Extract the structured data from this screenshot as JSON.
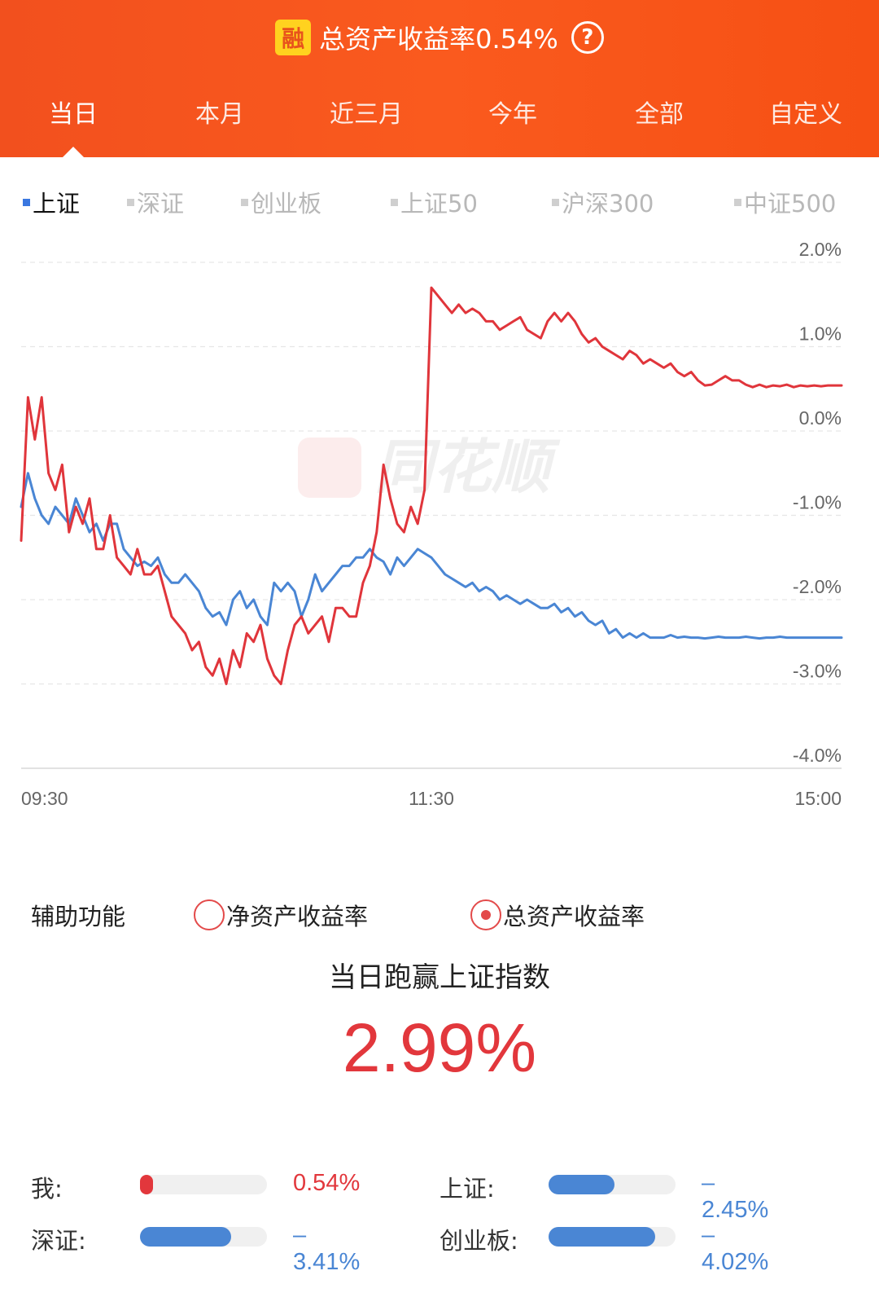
{
  "header": {
    "badge": "融",
    "title": "总资产收益率0.54%",
    "help_icon": "question-circle-icon",
    "tabs": [
      {
        "label": "当日",
        "active": true
      },
      {
        "label": "本月",
        "active": false
      },
      {
        "label": "近三月",
        "active": false
      },
      {
        "label": "今年",
        "active": false
      },
      {
        "label": "全部",
        "active": false
      },
      {
        "label": "自定义",
        "active": false
      }
    ]
  },
  "index_tabs": [
    {
      "label": "上证",
      "active": true
    },
    {
      "label": "深证",
      "active": false
    },
    {
      "label": "创业板",
      "active": false
    },
    {
      "label": "上证50",
      "active": false
    },
    {
      "label": "沪深300",
      "active": false
    },
    {
      "label": "中证500",
      "active": false
    }
  ],
  "watermark": "同花顺",
  "chart_data": {
    "type": "line",
    "x_ticks": [
      "09:30",
      "11:30",
      "15:00"
    ],
    "y_tick_labels": [
      "2.0%",
      "1.0%",
      "0.0%",
      "-1.0%",
      "-2.0%",
      "-3.0%",
      "-4.0%"
    ],
    "ylim": [
      -4.0,
      2.0
    ],
    "grid": true,
    "colors": {
      "my_return": "#e0353b",
      "index": "#4a86d4"
    },
    "series": [
      {
        "key": "my_return",
        "x": [
          0,
          2,
          4,
          6,
          8,
          10,
          12,
          14,
          16,
          18,
          20,
          22,
          24,
          26,
          28,
          30,
          32,
          34,
          36,
          38,
          40,
          42,
          44,
          46,
          48,
          50,
          52,
          54,
          56,
          58,
          60,
          62,
          64,
          66,
          68,
          70,
          72,
          74,
          76,
          78,
          80,
          82,
          84,
          86,
          88,
          90,
          92,
          94,
          96,
          98,
          100,
          102,
          104,
          106,
          108,
          110,
          112,
          114,
          116,
          118,
          120,
          122,
          124,
          126,
          128,
          130,
          132,
          134,
          136,
          138,
          140,
          142,
          144,
          146,
          148,
          150,
          152,
          154,
          156,
          158,
          160,
          162,
          164,
          166,
          168,
          170,
          172,
          174,
          176,
          178,
          180,
          182,
          184,
          186,
          188,
          190,
          192,
          194,
          196,
          198,
          200,
          202,
          204,
          206,
          208,
          210,
          212,
          214,
          216,
          218,
          220,
          222,
          224,
          226,
          228,
          230,
          232,
          234,
          236,
          238,
          240
        ],
        "y": [
          -1.3,
          0.4,
          -0.1,
          0.4,
          -0.5,
          -0.7,
          -0.4,
          -1.2,
          -0.9,
          -1.1,
          -0.8,
          -1.4,
          -1.4,
          -1.0,
          -1.5,
          -1.6,
          -1.7,
          -1.4,
          -1.7,
          -1.7,
          -1.6,
          -1.9,
          -2.2,
          -2.3,
          -2.4,
          -2.6,
          -2.5,
          -2.8,
          -2.9,
          -2.7,
          -3.0,
          -2.6,
          -2.8,
          -2.4,
          -2.5,
          -2.3,
          -2.7,
          -2.9,
          -3.0,
          -2.6,
          -2.3,
          -2.2,
          -2.4,
          -2.3,
          -2.2,
          -2.5,
          -2.1,
          -2.1,
          -2.2,
          -2.2,
          -1.8,
          -1.6,
          -1.2,
          -0.4,
          -0.8,
          -1.1,
          -1.2,
          -0.9,
          -1.1,
          -0.7,
          1.7,
          1.6,
          1.5,
          1.4,
          1.5,
          1.4,
          1.45,
          1.4,
          1.3,
          1.3,
          1.2,
          1.25,
          1.3,
          1.35,
          1.2,
          1.15,
          1.1,
          1.3,
          1.4,
          1.3,
          1.4,
          1.3,
          1.15,
          1.05,
          1.1,
          1.0,
          0.95,
          0.9,
          0.85,
          0.95,
          0.9,
          0.8,
          0.85,
          0.8,
          0.75,
          0.8,
          0.7,
          0.65,
          0.7,
          0.6,
          0.54,
          0.55,
          0.6,
          0.65,
          0.6,
          0.6,
          0.55,
          0.52,
          0.55,
          0.52,
          0.54,
          0.53,
          0.55,
          0.52,
          0.54,
          0.53,
          0.54,
          0.53,
          0.54,
          0.54,
          0.54
        ]
      },
      {
        "key": "index",
        "x": [
          0,
          2,
          4,
          6,
          8,
          10,
          12,
          14,
          16,
          18,
          20,
          22,
          24,
          26,
          28,
          30,
          32,
          34,
          36,
          38,
          40,
          42,
          44,
          46,
          48,
          50,
          52,
          54,
          56,
          58,
          60,
          62,
          64,
          66,
          68,
          70,
          72,
          74,
          76,
          78,
          80,
          82,
          84,
          86,
          88,
          90,
          92,
          94,
          96,
          98,
          100,
          102,
          104,
          106,
          108,
          110,
          112,
          114,
          116,
          118,
          120,
          122,
          124,
          126,
          128,
          130,
          132,
          134,
          136,
          138,
          140,
          142,
          144,
          146,
          148,
          150,
          152,
          154,
          156,
          158,
          160,
          162,
          164,
          166,
          168,
          170,
          172,
          174,
          176,
          178,
          180,
          182,
          184,
          186,
          188,
          190,
          192,
          194,
          196,
          198,
          200,
          202,
          204,
          206,
          208,
          210,
          212,
          214,
          216,
          218,
          220,
          222,
          224,
          226,
          228,
          230,
          232,
          234,
          236,
          238,
          240
        ],
        "y": [
          -0.9,
          -0.5,
          -0.8,
          -1.0,
          -1.1,
          -0.9,
          -1.0,
          -1.1,
          -0.8,
          -1.0,
          -1.2,
          -1.1,
          -1.3,
          -1.1,
          -1.1,
          -1.4,
          -1.5,
          -1.6,
          -1.55,
          -1.6,
          -1.5,
          -1.7,
          -1.8,
          -1.8,
          -1.7,
          -1.8,
          -1.9,
          -2.1,
          -2.2,
          -2.15,
          -2.3,
          -2.0,
          -1.9,
          -2.1,
          -2.0,
          -2.2,
          -2.3,
          -1.8,
          -1.9,
          -1.8,
          -1.9,
          -2.2,
          -2.0,
          -1.7,
          -1.9,
          -1.8,
          -1.7,
          -1.6,
          -1.6,
          -1.5,
          -1.5,
          -1.4,
          -1.5,
          -1.55,
          -1.7,
          -1.5,
          -1.6,
          -1.5,
          -1.4,
          -1.45,
          -1.5,
          -1.6,
          -1.7,
          -1.75,
          -1.8,
          -1.85,
          -1.8,
          -1.9,
          -1.85,
          -1.9,
          -2.0,
          -1.95,
          -2.0,
          -2.05,
          -2.0,
          -2.05,
          -2.1,
          -2.1,
          -2.05,
          -2.15,
          -2.1,
          -2.2,
          -2.15,
          -2.25,
          -2.3,
          -2.25,
          -2.4,
          -2.35,
          -2.45,
          -2.4,
          -2.45,
          -2.4,
          -2.45,
          -2.45,
          -2.45,
          -2.42,
          -2.45,
          -2.44,
          -2.45,
          -2.45,
          -2.46,
          -2.45,
          -2.44,
          -2.45,
          -2.45,
          -2.45,
          -2.44,
          -2.45,
          -2.46,
          -2.45,
          -2.45,
          -2.44,
          -2.45,
          -2.45,
          -2.45,
          -2.45,
          -2.45,
          -2.45,
          -2.45,
          -2.45,
          -2.45
        ]
      }
    ]
  },
  "aux": {
    "label": "辅助功能",
    "options": [
      {
        "label": "净资产收益率",
        "checked": false
      },
      {
        "label": "总资产收益率",
        "checked": true
      }
    ]
  },
  "beat": {
    "title": "当日跑赢上证指数",
    "value": "2.99%"
  },
  "comparisons": [
    {
      "label": "我:",
      "value": "0.54%",
      "fill_fraction": 0.1,
      "color": "#e2373c"
    },
    {
      "label": "上证:",
      "value": "–2.45%",
      "fill_fraction": 0.52,
      "color": "#4a86d4"
    },
    {
      "label": "深证:",
      "value": "–3.41%",
      "fill_fraction": 0.72,
      "color": "#4a86d4"
    },
    {
      "label": "创业板:",
      "value": "–4.02%",
      "fill_fraction": 0.84,
      "color": "#4a86d4"
    }
  ]
}
